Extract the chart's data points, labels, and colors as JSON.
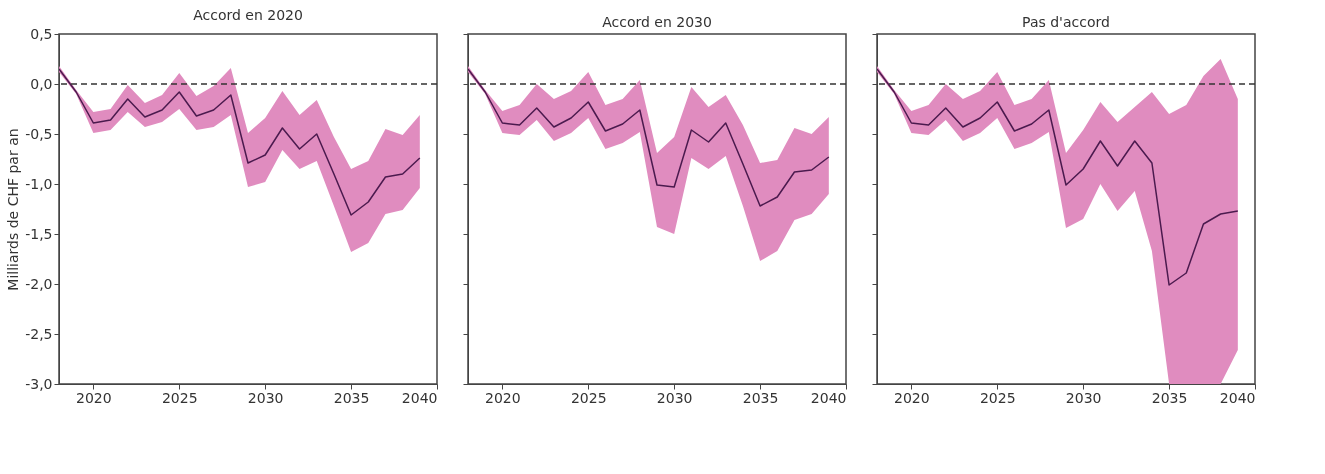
{
  "chart_data": [
    {
      "type": "line",
      "title": "Accord en 2020",
      "ylabel": "Milliards de CHF par an",
      "x": [
        2018,
        2019,
        2020,
        2021,
        2022,
        2023,
        2024,
        2025,
        2026,
        2027,
        2028,
        2029,
        2030,
        2031,
        2032,
        2033,
        2034,
        2035,
        2036,
        2037,
        2038,
        2039
      ],
      "xlim": [
        2018,
        2040
      ],
      "xticks": [
        2020,
        2025,
        2030,
        2035,
        2040
      ],
      "ylim": [
        -3.0,
        0.5
      ],
      "yticks": [
        {
          "value": 0.5,
          "label": "0,5"
        },
        {
          "value": 0.0,
          "label": "0,0"
        },
        {
          "value": -0.5,
          "label": "-0,5"
        },
        {
          "value": -1.0,
          "label": "-1,0"
        },
        {
          "value": -1.5,
          "label": "-1,5"
        },
        {
          "value": -2.0,
          "label": "-2,0"
        },
        {
          "value": -2.5,
          "label": "-2,5"
        },
        {
          "value": -3.0,
          "label": "-3,0"
        }
      ],
      "grid": false,
      "series": [
        {
          "color": "#4b1a4e",
          "values": [
            0.15,
            -0.08,
            -0.39,
            -0.36,
            -0.15,
            -0.33,
            -0.26,
            -0.08,
            -0.32,
            -0.26,
            -0.11,
            -0.79,
            -0.71,
            -0.44,
            -0.65,
            -0.5,
            -0.9,
            -1.31,
            -1.18,
            -0.93,
            -0.9,
            -0.74
          ],
          "lower": [
            0.12,
            -0.1,
            -0.49,
            -0.46,
            -0.28,
            -0.43,
            -0.38,
            -0.25,
            -0.46,
            -0.43,
            -0.31,
            -1.03,
            -0.98,
            -0.66,
            -0.85,
            -0.77,
            -1.22,
            -1.68,
            -1.59,
            -1.3,
            -1.26,
            -1.04
          ],
          "upper": [
            0.18,
            -0.06,
            -0.28,
            -0.25,
            -0.01,
            -0.19,
            -0.11,
            0.11,
            -0.12,
            -0.02,
            0.16,
            -0.49,
            -0.34,
            -0.07,
            -0.31,
            -0.16,
            -0.53,
            -0.85,
            -0.77,
            -0.45,
            -0.51,
            -0.31
          ]
        }
      ],
      "ref_lines": [
        {
          "axis": "y",
          "value": 0.0,
          "color": "#333333",
          "line_style": "dashed"
        }
      ]
    },
    {
      "type": "line",
      "title": "Accord en 2030",
      "x": [
        2018,
        2019,
        2020,
        2021,
        2022,
        2023,
        2024,
        2025,
        2026,
        2027,
        2028,
        2029,
        2030,
        2031,
        2032,
        2033,
        2034,
        2035,
        2036,
        2037,
        2038,
        2039
      ],
      "xlim": [
        2018,
        2040
      ],
      "xticks": [
        2020,
        2025,
        2030,
        2035,
        2040
      ],
      "ylim": [
        -3.0,
        0.5
      ],
      "yticks": [
        {
          "value": 0.5,
          "label": null
        },
        {
          "value": 0.0,
          "label": null
        },
        {
          "value": -0.5,
          "label": null
        },
        {
          "value": -1.0,
          "label": null
        },
        {
          "value": -1.5,
          "label": null
        },
        {
          "value": -2.0,
          "label": null
        },
        {
          "value": -2.5,
          "label": null
        },
        {
          "value": -3.0,
          "label": null
        }
      ],
      "grid": false,
      "tick_labels": "x",
      "series": [
        {
          "color": "#4b1a4e",
          "values": [
            0.15,
            -0.08,
            -0.39,
            -0.41,
            -0.24,
            -0.43,
            -0.34,
            -0.18,
            -0.47,
            -0.4,
            -0.26,
            -1.01,
            -1.03,
            -0.46,
            -0.58,
            -0.39,
            -0.8,
            -1.22,
            -1.13,
            -0.88,
            -0.86,
            -0.73
          ],
          "lower": [
            0.12,
            -0.1,
            -0.49,
            -0.51,
            -0.36,
            -0.57,
            -0.49,
            -0.34,
            -0.65,
            -0.59,
            -0.48,
            -1.43,
            -1.5,
            -0.74,
            -0.85,
            -0.72,
            -1.22,
            -1.77,
            -1.67,
            -1.36,
            -1.3,
            -1.1
          ],
          "upper": [
            0.18,
            -0.06,
            -0.27,
            -0.21,
            0.0,
            -0.15,
            -0.07,
            0.12,
            -0.21,
            -0.15,
            0.04,
            -0.69,
            -0.53,
            -0.03,
            -0.23,
            -0.11,
            -0.41,
            -0.79,
            -0.76,
            -0.44,
            -0.5,
            -0.33
          ]
        }
      ],
      "ref_lines": [
        {
          "axis": "y",
          "value": 0.0,
          "color": "#333333",
          "line_style": "dashed"
        }
      ]
    },
    {
      "type": "line",
      "title": "Pas d'accord",
      "x": [
        2018,
        2019,
        2020,
        2021,
        2022,
        2023,
        2024,
        2025,
        2026,
        2027,
        2028,
        2029,
        2030,
        2031,
        2032,
        2033,
        2034,
        2035,
        2036,
        2037,
        2038,
        2039
      ],
      "xlim": [
        2018,
        2040
      ],
      "xticks": [
        2020,
        2025,
        2030,
        2035,
        2040
      ],
      "ylim": [
        -3.0,
        0.5
      ],
      "yticks": [
        {
          "value": 0.5,
          "label": null
        },
        {
          "value": 0.0,
          "label": null
        },
        {
          "value": -0.5,
          "label": null
        },
        {
          "value": -1.0,
          "label": null
        },
        {
          "value": -1.5,
          "label": null
        },
        {
          "value": -2.0,
          "label": null
        },
        {
          "value": -2.5,
          "label": null
        },
        {
          "value": -3.0,
          "label": null
        }
      ],
      "grid": false,
      "tick_labels": "x",
      "series": [
        {
          "color": "#4b1a4e",
          "values": [
            0.15,
            -0.08,
            -0.39,
            -0.41,
            -0.24,
            -0.43,
            -0.34,
            -0.18,
            -0.47,
            -0.4,
            -0.26,
            -1.01,
            -0.85,
            -0.57,
            -0.82,
            -0.57,
            -0.79,
            -2.01,
            -1.89,
            -1.4,
            -1.3,
            -1.27
          ],
          "lower": [
            0.12,
            -0.1,
            -0.49,
            -0.51,
            -0.36,
            -0.57,
            -0.49,
            -0.34,
            -0.65,
            -0.59,
            -0.48,
            -1.44,
            -1.35,
            -1.0,
            -1.27,
            -1.07,
            -1.67,
            -3.0,
            -3.0,
            -3.0,
            -3.0,
            -2.66
          ],
          "upper": [
            0.18,
            -0.06,
            -0.27,
            -0.21,
            0.0,
            -0.15,
            -0.07,
            0.12,
            -0.21,
            -0.15,
            0.04,
            -0.69,
            -0.46,
            -0.18,
            -0.38,
            -0.23,
            -0.08,
            -0.3,
            -0.21,
            0.08,
            0.25,
            -0.15
          ]
        }
      ],
      "ref_lines": [
        {
          "axis": "y",
          "value": 0.0,
          "color": "#333333",
          "line_style": "dashed"
        }
      ]
    }
  ]
}
